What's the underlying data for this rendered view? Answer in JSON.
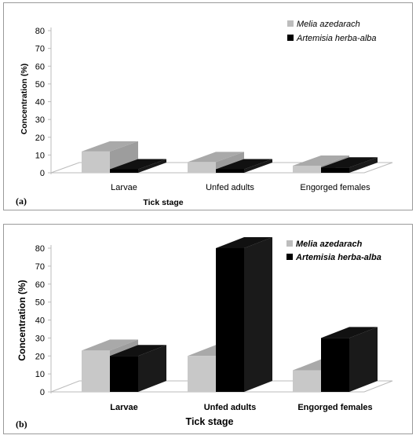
{
  "chart_data": [
    {
      "id": "a",
      "type": "bar",
      "panel_label": "(a)",
      "categories": [
        "Larvae",
        "Unfed adults",
        "Engorged females"
      ],
      "series": [
        {
          "name": "Melia azedarach",
          "color": "#c8c8c8",
          "values": [
            12,
            6,
            4
          ]
        },
        {
          "name": "Artemisia herba-alba",
          "color": "#000000",
          "values": [
            2,
            2,
            3
          ]
        }
      ],
      "xlabel": "Tick stage",
      "ylabel": "Concentration (%)",
      "ylim": [
        0,
        80
      ],
      "yticks": [
        0,
        10,
        20,
        30,
        40,
        50,
        60,
        70,
        80
      ],
      "grid": false,
      "legend": "top-right",
      "bold_labels": false
    },
    {
      "id": "b",
      "type": "bar",
      "panel_label": "(b)",
      "categories": [
        "Larvae",
        "Unfed adults",
        "Engorged females"
      ],
      "series": [
        {
          "name": "Melia azedarach",
          "color": "#c8c8c8",
          "values": [
            23,
            20,
            12
          ]
        },
        {
          "name": "Artemisia herba-alba",
          "color": "#000000",
          "values": [
            20,
            80,
            30
          ]
        }
      ],
      "xlabel": "Tick stage",
      "ylabel": "Concentration (%)",
      "ylim": [
        0,
        80
      ],
      "yticks": [
        0,
        10,
        20,
        30,
        40,
        50,
        60,
        70,
        80
      ],
      "grid": false,
      "legend": "top-right",
      "bold_labels": true
    }
  ]
}
